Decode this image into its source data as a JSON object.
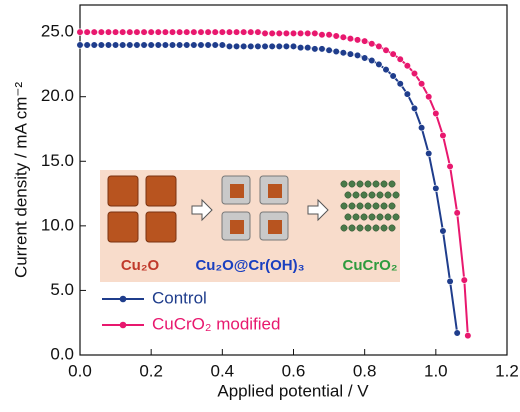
{
  "chart_data": {
    "type": "line",
    "xlabel": "Applied potential / V",
    "ylabel": "Current density / mA cm⁻²",
    "xlim": [
      0,
      1.2
    ],
    "ylim": [
      0,
      27.1
    ],
    "xticks": [
      {
        "value": 0,
        "label": "0.0"
      },
      {
        "value": 0.2,
        "label": "0.2"
      },
      {
        "value": 0.4,
        "label": "0.4"
      },
      {
        "value": 0.6,
        "label": "0.6"
      },
      {
        "value": 0.8,
        "label": "0.8"
      },
      {
        "value": 1,
        "label": "1.0"
      },
      {
        "value": 1.2,
        "label": "1.2"
      }
    ],
    "yticks": [
      {
        "value": 0,
        "label": "0.0"
      },
      {
        "value": 5,
        "label": "5.0"
      },
      {
        "value": 10,
        "label": "10.0"
      },
      {
        "value": 15,
        "label": "15.0"
      },
      {
        "value": 20,
        "label": "20.0"
      },
      {
        "value": 25,
        "label": "25.0"
      }
    ],
    "legend": "lower left",
    "series": [
      {
        "name": "Control",
        "color": "#1f3d8c",
        "x": [
          0,
          0.02,
          0.04,
          0.06,
          0.08,
          0.1,
          0.12,
          0.14,
          0.16,
          0.18,
          0.2,
          0.22,
          0.24,
          0.26,
          0.28,
          0.3,
          0.32,
          0.34,
          0.36,
          0.38,
          0.4,
          0.42,
          0.44,
          0.46,
          0.48,
          0.5,
          0.52,
          0.54,
          0.56,
          0.58,
          0.6,
          0.62,
          0.64,
          0.66,
          0.68,
          0.7,
          0.72,
          0.74,
          0.76,
          0.78,
          0.8,
          0.82,
          0.84,
          0.86,
          0.88,
          0.9,
          0.92,
          0.94,
          0.96,
          0.98,
          1,
          1.02,
          1.04,
          1.06
        ],
        "values": [
          24,
          24,
          24,
          24,
          24,
          24,
          24,
          24,
          24,
          24,
          24,
          24,
          24,
          24,
          24,
          24,
          24,
          24,
          24,
          24,
          24,
          23.9,
          23.9,
          23.9,
          23.9,
          23.9,
          23.9,
          23.9,
          23.9,
          23.9,
          23.9,
          23.8,
          23.8,
          23.7,
          23.7,
          23.6,
          23.5,
          23.4,
          23.3,
          23.2,
          23,
          22.8,
          22.5,
          22.1,
          21.6,
          21,
          20.2,
          19.1,
          17.6,
          15.6,
          12.9,
          9.6,
          5.7,
          1.7
        ]
      },
      {
        "name": "CuCrO₂ modified",
        "color": "#e8186e",
        "x": [
          0,
          0.02,
          0.04,
          0.06,
          0.08,
          0.1,
          0.12,
          0.14,
          0.16,
          0.18,
          0.2,
          0.22,
          0.24,
          0.26,
          0.28,
          0.3,
          0.32,
          0.34,
          0.36,
          0.38,
          0.4,
          0.42,
          0.44,
          0.46,
          0.48,
          0.5,
          0.52,
          0.54,
          0.56,
          0.58,
          0.6,
          0.62,
          0.64,
          0.66,
          0.68,
          0.7,
          0.72,
          0.74,
          0.76,
          0.78,
          0.8,
          0.82,
          0.84,
          0.86,
          0.88,
          0.9,
          0.92,
          0.94,
          0.96,
          0.98,
          1,
          1.02,
          1.04,
          1.06,
          1.08,
          1.09
        ],
        "values": [
          25,
          25,
          25,
          25,
          25,
          25,
          25,
          25,
          25,
          25,
          25,
          25,
          25,
          25,
          25,
          25,
          25,
          25,
          25,
          25,
          25,
          25,
          25,
          25,
          25,
          25,
          24.9,
          24.9,
          24.9,
          24.9,
          24.9,
          24.9,
          24.9,
          24.9,
          24.8,
          24.8,
          24.7,
          24.6,
          24.5,
          24.4,
          24.3,
          24.1,
          23.9,
          23.6,
          23.3,
          22.9,
          22.4,
          21.8,
          21,
          20,
          18.7,
          17,
          14.6,
          11,
          5.8,
          1.5
        ]
      }
    ],
    "annotations": [
      "Cu₂O",
      "Cu₂O@Cr(OH)₃",
      "CuCrO₂"
    ]
  }
}
